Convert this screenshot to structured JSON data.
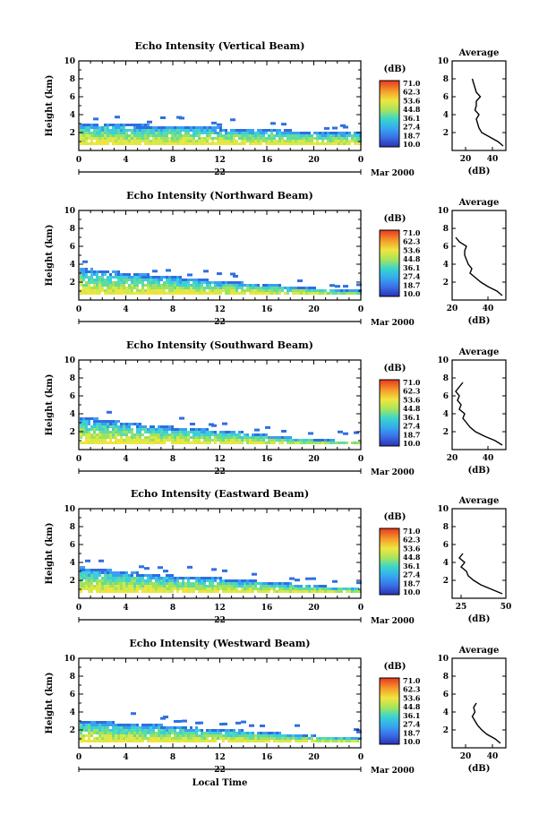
{
  "chart_data": [
    {
      "type": "heatmap",
      "title": "Echo Intensity (Vertical Beam)",
      "ylabel": "Height (km)",
      "ylim": [
        0,
        10
      ],
      "xlim": [
        0,
        24
      ],
      "x_ticks": [
        "0",
        "4",
        "8",
        "12",
        "16",
        "20",
        "0"
      ],
      "y_ticks": [
        "2",
        "4",
        "6",
        "8",
        "10"
      ],
      "day_label": "22",
      "date_label": "Mar 2000",
      "colorbar_unit": "(dB)",
      "colorbar_levels": [
        "71.0",
        "62.3",
        "53.6",
        "44.8",
        "36.1",
        "27.4",
        "18.7",
        "10.0"
      ],
      "echo_top_km": [
        3.3,
        3.2,
        3.1,
        3.0,
        2.9,
        2.8,
        2.7,
        2.6,
        2.5,
        2.4,
        2.3,
        2.2,
        2.1
      ],
      "echo_top_hours": [
        0,
        2,
        4,
        6,
        8,
        10,
        12,
        14,
        16,
        18,
        20,
        22,
        24
      ],
      "profile": {
        "header": "Average",
        "xlabel": "(dB)",
        "x_ticks": [
          "20",
          "40"
        ],
        "xlim": [
          10,
          50
        ],
        "y_ticks": [
          "2",
          "4",
          "6",
          "8",
          "10"
        ],
        "ylim": [
          0,
          10
        ],
        "heights_km": [
          0.5,
          1.0,
          1.5,
          2.0,
          2.5,
          3.0,
          3.5,
          4.0,
          4.5,
          5.0,
          5.5,
          6.0,
          6.5,
          7.0,
          7.5,
          8.0
        ],
        "values_db": [
          48,
          44,
          38,
          32,
          30,
          29,
          28,
          30,
          27,
          28,
          28,
          31,
          28,
          27,
          26,
          25
        ]
      }
    },
    {
      "type": "heatmap",
      "title": "Echo Intensity (Northward Beam)",
      "ylabel": "Height (km)",
      "ylim": [
        0,
        10
      ],
      "xlim": [
        0,
        24
      ],
      "x_ticks": [
        "0",
        "4",
        "8",
        "12",
        "16",
        "20",
        "0"
      ],
      "y_ticks": [
        "2",
        "4",
        "6",
        "8",
        "10"
      ],
      "day_label": "22",
      "date_label": "Mar 2000",
      "colorbar_unit": "(dB)",
      "colorbar_levels": [
        "71.0",
        "62.3",
        "53.6",
        "44.8",
        "36.1",
        "27.4",
        "18.7",
        "10.0"
      ],
      "echo_top_km": [
        3.8,
        3.5,
        3.2,
        3.0,
        2.8,
        2.5,
        2.3,
        2.1,
        1.9,
        1.7,
        1.5,
        1.3,
        1.2
      ],
      "echo_top_hours": [
        0,
        2,
        4,
        6,
        8,
        10,
        12,
        14,
        16,
        18,
        20,
        22,
        24
      ],
      "profile": {
        "header": "Average",
        "xlabel": "(dB)",
        "x_ticks": [
          "20",
          "40"
        ],
        "xlim": [
          20,
          50
        ],
        "y_ticks": [
          "2",
          "4",
          "6",
          "8",
          "10"
        ],
        "ylim": [
          0,
          10
        ],
        "heights_km": [
          0.5,
          1.0,
          1.5,
          2.0,
          2.5,
          3.0,
          3.5,
          4.0,
          4.5,
          5.0,
          5.5,
          6.0,
          6.5,
          7.0
        ],
        "values_db": [
          48,
          45,
          40,
          36,
          33,
          30,
          31,
          29,
          28,
          27,
          27,
          28,
          24,
          22
        ]
      }
    },
    {
      "type": "heatmap",
      "title": "Echo Intensity (Southward Beam)",
      "ylabel": "Height (km)",
      "ylim": [
        0,
        10
      ],
      "xlim": [
        0,
        24
      ],
      "x_ticks": [
        "0",
        "4",
        "8",
        "12",
        "16",
        "20",
        "0"
      ],
      "y_ticks": [
        "2",
        "4",
        "6",
        "8",
        "10"
      ],
      "day_label": "22",
      "date_label": "Mar 2000",
      "colorbar_unit": "(dB)",
      "colorbar_levels": [
        "71.0",
        "62.3",
        "53.6",
        "44.8",
        "36.1",
        "27.4",
        "18.7",
        "10.0"
      ],
      "echo_top_km": [
        3.9,
        3.5,
        3.2,
        2.9,
        2.7,
        2.5,
        2.3,
        2.1,
        1.8,
        1.5,
        1.3,
        1.2,
        1.2
      ],
      "echo_top_hours": [
        0,
        2,
        4,
        6,
        8,
        10,
        12,
        14,
        16,
        18,
        20,
        22,
        24
      ],
      "profile": {
        "header": "Average",
        "xlabel": "(dB)",
        "x_ticks": [
          "20",
          "40"
        ],
        "xlim": [
          20,
          50
        ],
        "y_ticks": [
          "2",
          "4",
          "6",
          "8",
          "10"
        ],
        "ylim": [
          0,
          10
        ],
        "heights_km": [
          0.5,
          1.0,
          1.5,
          2.0,
          2.5,
          3.0,
          3.5,
          4.0,
          4.5,
          5.0,
          5.5,
          6.0,
          6.5,
          7.0,
          7.5
        ],
        "values_db": [
          48,
          44,
          38,
          33,
          30,
          28,
          26,
          27,
          24,
          25,
          23,
          24,
          22,
          24,
          26
        ]
      }
    },
    {
      "type": "heatmap",
      "title": "Echo Intensity (Eastward Beam)",
      "ylabel": "Height (km)",
      "ylim": [
        0,
        10
      ],
      "xlim": [
        0,
        24
      ],
      "x_ticks": [
        "0",
        "4",
        "8",
        "12",
        "16",
        "20",
        "0"
      ],
      "y_ticks": [
        "2",
        "4",
        "6",
        "8",
        "10"
      ],
      "day_label": "22",
      "date_label": "Mar 2000",
      "colorbar_unit": "(dB)",
      "colorbar_levels": [
        "71.0",
        "62.3",
        "53.6",
        "44.8",
        "36.1",
        "27.4",
        "18.7",
        "10.0"
      ],
      "echo_top_km": [
        3.7,
        3.4,
        3.1,
        2.9,
        2.7,
        2.5,
        2.4,
        2.2,
        2.0,
        1.8,
        1.6,
        1.4,
        1.3
      ],
      "echo_top_hours": [
        0,
        2,
        4,
        6,
        8,
        10,
        12,
        14,
        16,
        18,
        20,
        22,
        24
      ],
      "profile": {
        "header": "Average",
        "xlabel": "(dB)",
        "x_ticks": [
          "25",
          "50"
        ],
        "xlim": [
          20,
          50
        ],
        "y_ticks": [
          "2",
          "4",
          "6",
          "8",
          "10"
        ],
        "ylim": [
          0,
          10
        ],
        "heights_km": [
          0.5,
          1.0,
          1.5,
          2.0,
          2.5,
          3.0,
          3.5,
          4.0,
          4.5,
          5.0
        ],
        "values_db": [
          48,
          42,
          36,
          32,
          29,
          28,
          25,
          27,
          24,
          26
        ]
      }
    },
    {
      "type": "heatmap",
      "title": "Echo Intensity (Westward Beam)",
      "ylabel": "Height (km)",
      "ylim": [
        0,
        10
      ],
      "xlim": [
        0,
        24
      ],
      "x_ticks": [
        "0",
        "4",
        "8",
        "12",
        "16",
        "20",
        "0"
      ],
      "y_ticks": [
        "2",
        "4",
        "6",
        "8",
        "10"
      ],
      "day_label": "22",
      "date_label": "Mar 2000",
      "xlabel": "Local Time",
      "colorbar_unit": "(dB)",
      "colorbar_levels": [
        "71.0",
        "62.3",
        "53.6",
        "44.8",
        "36.1",
        "27.4",
        "18.7",
        "10.0"
      ],
      "echo_top_km": [
        3.3,
        3.1,
        2.9,
        2.8,
        2.6,
        2.4,
        2.3,
        2.1,
        1.9,
        1.7,
        1.5,
        1.4,
        1.3
      ],
      "echo_top_hours": [
        0,
        2,
        4,
        6,
        8,
        10,
        12,
        14,
        16,
        18,
        20,
        22,
        24
      ],
      "profile": {
        "header": "Average",
        "xlabel": "(dB)",
        "x_ticks": [
          "20",
          "40"
        ],
        "xlim": [
          10,
          50
        ],
        "y_ticks": [
          "2",
          "4",
          "6",
          "8",
          "10"
        ],
        "ylim": [
          0,
          10
        ],
        "heights_km": [
          0.5,
          1.0,
          1.5,
          2.0,
          2.5,
          3.0,
          3.5,
          4.0,
          4.5,
          5.0
        ],
        "values_db": [
          46,
          42,
          36,
          32,
          29,
          27,
          25,
          27,
          26,
          28
        ]
      }
    }
  ]
}
